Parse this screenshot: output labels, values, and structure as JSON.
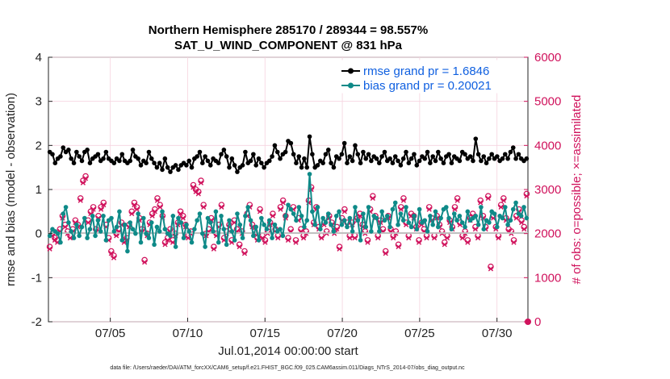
{
  "chart_data": {
    "type": "line",
    "title": "Northern Hemisphere 285170 / 289344 = 98.557%",
    "subtitle": "SAT_U_WIND_COMPONENT @ 831 hPa",
    "xlabel": "Jul.01,2014 00:00:00 start",
    "ylabel_left": "rmse and bias (model - observation)",
    "ylabel_right": "# of obs: o=possible; ×=assimilated",
    "ylim_left": [
      -2,
      4
    ],
    "ylim_right": [
      0,
      6000
    ],
    "yticks_left": [
      "4",
      "3",
      "2",
      "1",
      "0",
      "-1",
      "-2"
    ],
    "yticks_right": [
      "6000",
      "5000",
      "4000",
      "3000",
      "2000",
      "1000",
      "0"
    ],
    "xticks": [
      "07/05",
      "07/10",
      "07/15",
      "07/20",
      "07/25",
      "07/30"
    ],
    "xrange_days": [
      1,
      32
    ],
    "footnote": "data file: /Users/raeder/DAI/ATM_forcXX/CAM6_setup/f.e21.FHIST_BGC.f09_025.CAM6assim.011/Diags_NTrS_2014-07/obs_diag_output.nc",
    "colors": {
      "rmse": "#000000",
      "bias": "#0e8a88",
      "obs": "#d0125c",
      "zero": "#c0c0c0",
      "legend_text": "#1060e0"
    },
    "series": [
      {
        "name": "rmse grand pr = 1.6846",
        "values": [
          1.85,
          1.8,
          1.6,
          1.7,
          1.75,
          1.95,
          1.85,
          1.9,
          1.7,
          1.6,
          1.85,
          1.75,
          1.65,
          1.85,
          1.9,
          1.6,
          1.7,
          1.75,
          1.8,
          1.65,
          1.7,
          1.85,
          1.7,
          1.65,
          1.6,
          1.7,
          1.65,
          1.8,
          1.65,
          1.6,
          1.65,
          1.9,
          1.75,
          1.7,
          1.55,
          1.65,
          1.6,
          1.85,
          1.7,
          1.6,
          1.5,
          1.6,
          1.45,
          1.7,
          1.5,
          1.4,
          1.5,
          1.55,
          1.45,
          1.55,
          1.6,
          1.55,
          1.65,
          1.5,
          1.7,
          1.75,
          1.85,
          1.6,
          1.75,
          1.65,
          1.55,
          1.7,
          1.65,
          1.6,
          1.8,
          1.9,
          1.75,
          1.5,
          1.7,
          1.55,
          1.4,
          1.5,
          1.55,
          1.85,
          1.6,
          1.65,
          1.8,
          1.55,
          1.7,
          1.6,
          1.5,
          1.6,
          1.65,
          1.75,
          2.0,
          1.85,
          1.7,
          1.8,
          1.85,
          2.1,
          2.05,
          1.8,
          1.6,
          1.75,
          1.5,
          1.7,
          1.5,
          2.2,
          1.8,
          1.5,
          1.55,
          1.65,
          1.6,
          1.8,
          1.9,
          1.6,
          1.5,
          1.75,
          1.7,
          1.8,
          2.05,
          1.6,
          1.75,
          1.65,
          2.0,
          1.8,
          1.6,
          1.85,
          1.7,
          1.8,
          1.65,
          1.75,
          1.7,
          1.6,
          1.75,
          1.85,
          1.65,
          1.7,
          1.6,
          1.75,
          1.65,
          1.55,
          1.7,
          1.85,
          1.6,
          1.7,
          1.8,
          1.55,
          1.65,
          1.75,
          1.7,
          1.85,
          1.6,
          1.75,
          1.65,
          1.85,
          1.7,
          1.6,
          1.75,
          1.8,
          1.6,
          1.75,
          1.7,
          1.65,
          1.85,
          1.8,
          1.7,
          1.75,
          1.65,
          2.15,
          1.8,
          1.65,
          1.75,
          1.6,
          1.7,
          1.8,
          1.7,
          1.75,
          1.65,
          1.7,
          1.8,
          1.7,
          1.85,
          1.95,
          1.7,
          1.8,
          1.7,
          1.65,
          1.7
        ]
      },
      {
        "name": "bias grand pr = 0.20021",
        "values": [
          -0.05,
          0.1,
          0.05,
          0.0,
          -0.2,
          0.45,
          0.6,
          0.25,
          0.05,
          -0.1,
          0.2,
          -0.05,
          0.15,
          0.35,
          -0.1,
          0.1,
          0.4,
          -0.05,
          0.3,
          0.05,
          0.4,
          -0.15,
          0.3,
          0.35,
          0.05,
          0.15,
          0.5,
          -0.15,
          0.2,
          -0.4,
          0.25,
          0.1,
          0.0,
          0.45,
          -0.2,
          0.35,
          0.0,
          -0.1,
          0.25,
          -0.25,
          0.15,
          0.05,
          0.5,
          0.1,
          0.0,
          -0.05,
          0.4,
          -0.3,
          0.35,
          0.25,
          -0.1,
          0.2,
          0.05,
          -0.2,
          0.1,
          0.3,
          0.45,
          0.0,
          -0.3,
          0.35,
          0.25,
          0.05,
          0.5,
          -0.2,
          0.4,
          0.1,
          -0.25,
          0.3,
          0.05,
          -0.15,
          0.45,
          0.2,
          -0.1,
          0.4,
          0.6,
          0.3,
          -0.05,
          0.15,
          -0.15,
          0.35,
          0.2,
          0.1,
          0.3,
          -0.1,
          0.2,
          0.05,
          0.1,
          -0.05,
          0.4,
          0.65,
          0.55,
          0.45,
          0.3,
          0.6,
          0.4,
          0.15,
          0.3,
          1.35,
          0.5,
          0.2,
          0.6,
          0.1,
          0.35,
          0.25,
          0.45,
          0.2,
          0.05,
          0.4,
          0.5,
          0.2,
          0.3,
          0.15,
          0.35,
          0.05,
          0.6,
          0.3,
          -0.15,
          0.45,
          0.15,
          0.6,
          0.05,
          0.4,
          0.35,
          0.05,
          0.5,
          0.3,
          0.4,
          0.15,
          0.55,
          0.7,
          0.2,
          0.45,
          0.3,
          0.6,
          0.25,
          0.15,
          0.4,
          0.1,
          0.55,
          0.25,
          0.3,
          0.05,
          0.4,
          0.2,
          0.5,
          0.15,
          0.35,
          0.55,
          0.6,
          0.35,
          0.1,
          0.45,
          0.3,
          0.4,
          0.25,
          0.15,
          0.5,
          0.3,
          0.35,
          0.4,
          0.2,
          0.6,
          0.1,
          0.3,
          0.25,
          0.5,
          0.45,
          0.15,
          0.4,
          0.35,
          0.6,
          0.2,
          0.3,
          0.55,
          0.7,
          0.45,
          0.4,
          0.6,
          0.35
        ]
      }
    ],
    "obs_counts_possible": [
      1700,
      2000,
      1900,
      1850,
      2100,
      2400,
      2200,
      2050,
      1950,
      2100,
      2300,
      2200,
      2800,
      3200,
      3300,
      2300,
      2500,
      2600,
      2100,
      2400,
      2600,
      2700,
      2200,
      1900,
      1600,
      1500,
      2000,
      2100,
      2250,
      1850,
      1900,
      2200,
      2500,
      2700,
      2600,
      2350,
      2100,
      1400,
      2000,
      2250,
      2450,
      2550,
      2800,
      2650,
      2400,
      1800,
      1900,
      2100,
      1850,
      2000,
      2250,
      2500,
      2400,
      2200,
      1950,
      2050,
      3100,
      3000,
      2950,
      3200,
      2650,
      2000,
      2100,
      2350,
      1700,
      2000,
      2200,
      2650,
      1900,
      2050,
      2200,
      1850,
      2300,
      2100,
      1750,
      2050,
      1600,
      2450,
      2650,
      2200,
      2050,
      1900,
      2550,
      1950,
      1850,
      2050,
      2250,
      2450,
      2100,
      1950,
      2600,
      2750,
      2400,
      1900,
      2100,
      2600,
      1850,
      2350,
      2100,
      1950,
      2050,
      2750,
      3050,
      2250,
      2600,
      2150,
      1950,
      2250,
      2050,
      2400,
      2250,
      2050,
      2150,
      1700,
      2350,
      2550,
      2250,
      1950,
      2250,
      1950,
      2350,
      2450,
      2200,
      2050,
      1850,
      2550,
      2850,
      2400,
      1950,
      2300,
      2100,
      1600,
      2400,
      2100,
      1950,
      2050,
      1750,
      2600,
      2800,
      2250,
      1950,
      2450,
      2400,
      2150,
      1850,
      2250,
      2100,
      1950,
      2600,
      2350,
      1950,
      2400,
      2200,
      2050,
      1800,
      1950,
      2300,
      2150,
      2600,
      2800,
      2250,
      1950,
      2050,
      1850,
      2350,
      2450,
      2150,
      1950,
      2750,
      2400,
      2150,
      2850,
      1250,
      2400,
      2150,
      1950,
      2650,
      2800,
      2350,
      2100,
      2050,
      1850,
      2400,
      2550,
      2300,
      2150,
      2900
    ],
    "obs_counts_assimilated": [
      1650,
      1950,
      1850,
      1800,
      2050,
      2350,
      2150,
      2000,
      1900,
      2050,
      2250,
      2150,
      2750,
      3150,
      3250,
      2250,
      2450,
      2550,
      2050,
      2350,
      2550,
      2650,
      2150,
      1850,
      1550,
      1450,
      1950,
      2050,
      2200,
      1800,
      1850,
      2150,
      2450,
      2650,
      2550,
      2300,
      2050,
      1350,
      1950,
      2200,
      2400,
      2500,
      2750,
      2600,
      2350,
      1750,
      1850,
      2050,
      1800,
      1950,
      2200,
      2450,
      2350,
      2150,
      1900,
      2000,
      3050,
      2950,
      2900,
      3150,
      2600,
      1950,
      2050,
      2300,
      1650,
      1950,
      2150,
      2600,
      1850,
      2000,
      2150,
      1800,
      2250,
      2050,
      1700,
      2000,
      1550,
      2400,
      2600,
      2150,
      2000,
      1850,
      2500,
      1900,
      1800,
      2000,
      2200,
      2400,
      2050,
      1900,
      2550,
      2700,
      2350,
      1850,
      2050,
      2550,
      1800,
      2300,
      2050,
      1900,
      2000,
      2700,
      3000,
      2200,
      2550,
      2100,
      1900,
      2200,
      2000,
      2350,
      2200,
      2000,
      2100,
      1650,
      2300,
      2500,
      2200,
      1900,
      2200,
      1900,
      2300,
      2400,
      2150,
      2000,
      1800,
      2500,
      2800,
      2350,
      1900,
      2250,
      2050,
      1550,
      2350,
      2050,
      1900,
      2000,
      1700,
      2550,
      2750,
      2200,
      1900,
      2400,
      2350,
      2100,
      1800,
      2200,
      2050,
      1900,
      2550,
      2300,
      1900,
      2350,
      2150,
      2000,
      1750,
      1900,
      2250,
      2100,
      2550,
      2750,
      2200,
      1900,
      2000,
      1800,
      2300,
      2400,
      2100,
      1900,
      2700,
      2350,
      2100,
      2800,
      1200,
      2350,
      2100,
      1900,
      2600,
      2750,
      2300,
      2050,
      2000,
      1800,
      2350,
      2500,
      2250,
      2100,
      2850
    ]
  }
}
